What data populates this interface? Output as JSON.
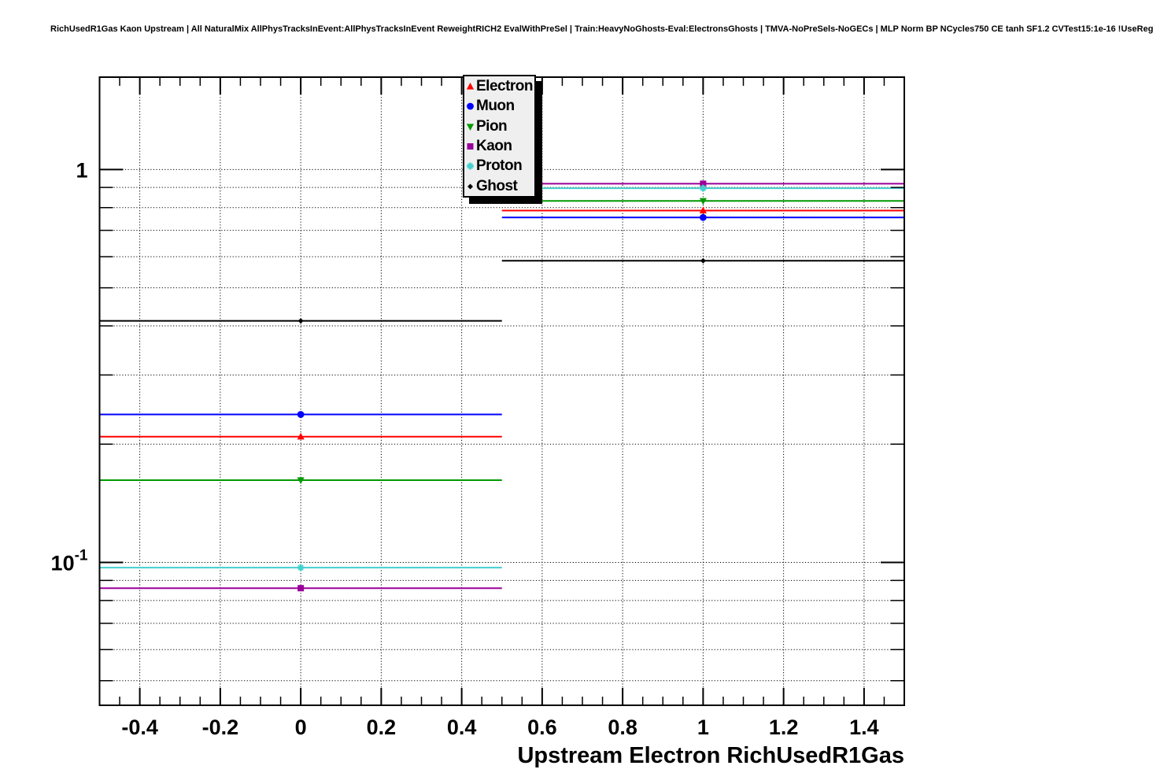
{
  "page_title": "RichUsedR1Gas Kaon Upstream | All NaturalMix AllPhysTracksInEvent:AllPhysTracksInEvent ReweightRICH2 EvalWithPreSel | Train:HeavyNoGhosts-Eval:ElectronsGhosts | TMVA-NoPreSels-NoGECs | MLP Norm BP NCycles750 CE tanh SF1.2 CVTest15:1e-16 !UseReg",
  "chart_data": {
    "type": "line",
    "title": "RichUsedR1Gas Kaon Upstream | All NaturalMix AllPhysTracksInEvent:AllPhysTracksInEvent ReweightRICH2 EvalWithPreSel | Train:HeavyNoGhosts-Eval:ElectronsGhosts | TMVA-NoPreSels-NoGECs | MLP Norm BP NCycles750 CE tanh SF1.2 CVTest15:1e-16 !UseReg",
    "xlabel": "Upstream Electron RichUsedR1Gas",
    "ylabel": "",
    "xlim": [
      -0.5,
      1.5
    ],
    "ylim": [
      0.0433,
      1.718
    ],
    "yscale": "log",
    "grid": true,
    "legend_position": "top-center",
    "x_ticks": [
      -0.4,
      -0.2,
      0,
      0.2,
      0.4,
      0.6,
      0.8,
      1,
      1.2,
      1.4
    ],
    "x_tick_labels": [
      "-0.4",
      "-0.2",
      "0",
      "0.2",
      "0.4",
      "0.6",
      "0.8",
      "1",
      "1.2",
      "1.4"
    ],
    "x_minor_step": 0.05,
    "y_tick_labels": [
      {
        "value": 1,
        "label": "1",
        "exp": ""
      },
      {
        "value": 0.1,
        "label": "10",
        "exp": "-1"
      }
    ],
    "bins": {
      "x_centers": [
        0,
        1
      ],
      "x_low": [
        -0.5,
        0.5
      ],
      "x_high": [
        0.5,
        1.5
      ]
    },
    "series": [
      {
        "name": "Electron",
        "color": "#ff0000",
        "marker": "triangle-up",
        "values": [
          0.209,
          0.786
        ]
      },
      {
        "name": "Muon",
        "color": "#0000ff",
        "marker": "circle",
        "values": [
          0.238,
          0.755
        ]
      },
      {
        "name": "Pion",
        "color": "#009900",
        "marker": "triangle-down",
        "values": [
          0.162,
          0.832
        ]
      },
      {
        "name": "Kaon",
        "color": "#990099",
        "marker": "square",
        "values": [
          0.086,
          0.92
        ]
      },
      {
        "name": "Proton",
        "color": "#45cfcf",
        "marker": "star",
        "values": [
          0.097,
          0.896
        ]
      },
      {
        "name": "Ghost",
        "color": "#000000",
        "marker": "diamond",
        "values": [
          0.412,
          0.586
        ]
      }
    ]
  }
}
